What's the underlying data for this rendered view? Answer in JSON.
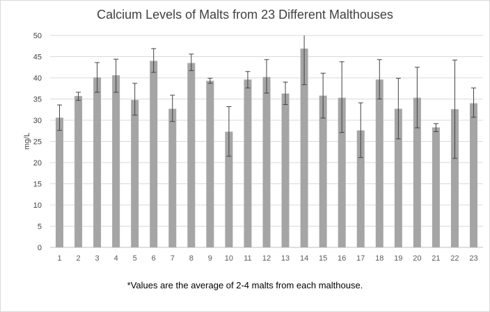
{
  "chart_data": {
    "type": "bar",
    "title": "Calcium Levels of Malts from 23 Different Malthouses",
    "xlabel": "",
    "ylabel": "mg/L",
    "ylim": [
      0,
      50
    ],
    "yticks": [
      0,
      5,
      10,
      15,
      20,
      25,
      30,
      35,
      40,
      45,
      50
    ],
    "grid": true,
    "categories": [
      "1",
      "2",
      "3",
      "4",
      "5",
      "6",
      "7",
      "8",
      "9",
      "10",
      "11",
      "12",
      "13",
      "14",
      "15",
      "16",
      "17",
      "18",
      "19",
      "20",
      "21",
      "22",
      "23"
    ],
    "values": [
      30.6,
      35.7,
      40.1,
      40.6,
      34.8,
      44.0,
      32.7,
      43.5,
      39.3,
      27.3,
      39.6,
      40.2,
      36.3,
      46.9,
      35.8,
      35.3,
      27.6,
      39.6,
      32.7,
      35.3,
      28.3,
      32.6,
      34.0
    ],
    "error_low": [
      27.6,
      34.7,
      36.6,
      36.6,
      31.2,
      41.3,
      29.7,
      41.7,
      38.7,
      21.5,
      37.6,
      36.4,
      33.7,
      38.4,
      30.5,
      27.1,
      21.2,
      35.0,
      25.6,
      28.2,
      27.3,
      21.0,
      30.7
    ],
    "error_high": [
      33.6,
      36.6,
      43.6,
      44.4,
      38.7,
      46.9,
      35.9,
      45.6,
      39.9,
      33.2,
      41.5,
      44.3,
      39.0,
      55.4,
      41.1,
      43.8,
      34.1,
      44.3,
      39.9,
      42.5,
      29.2,
      44.2,
      37.6
    ],
    "bar_color": "#a5a5a5",
    "error_color": "#404040",
    "note": "*Values are the average of 2-4 malts from each malthouse."
  }
}
